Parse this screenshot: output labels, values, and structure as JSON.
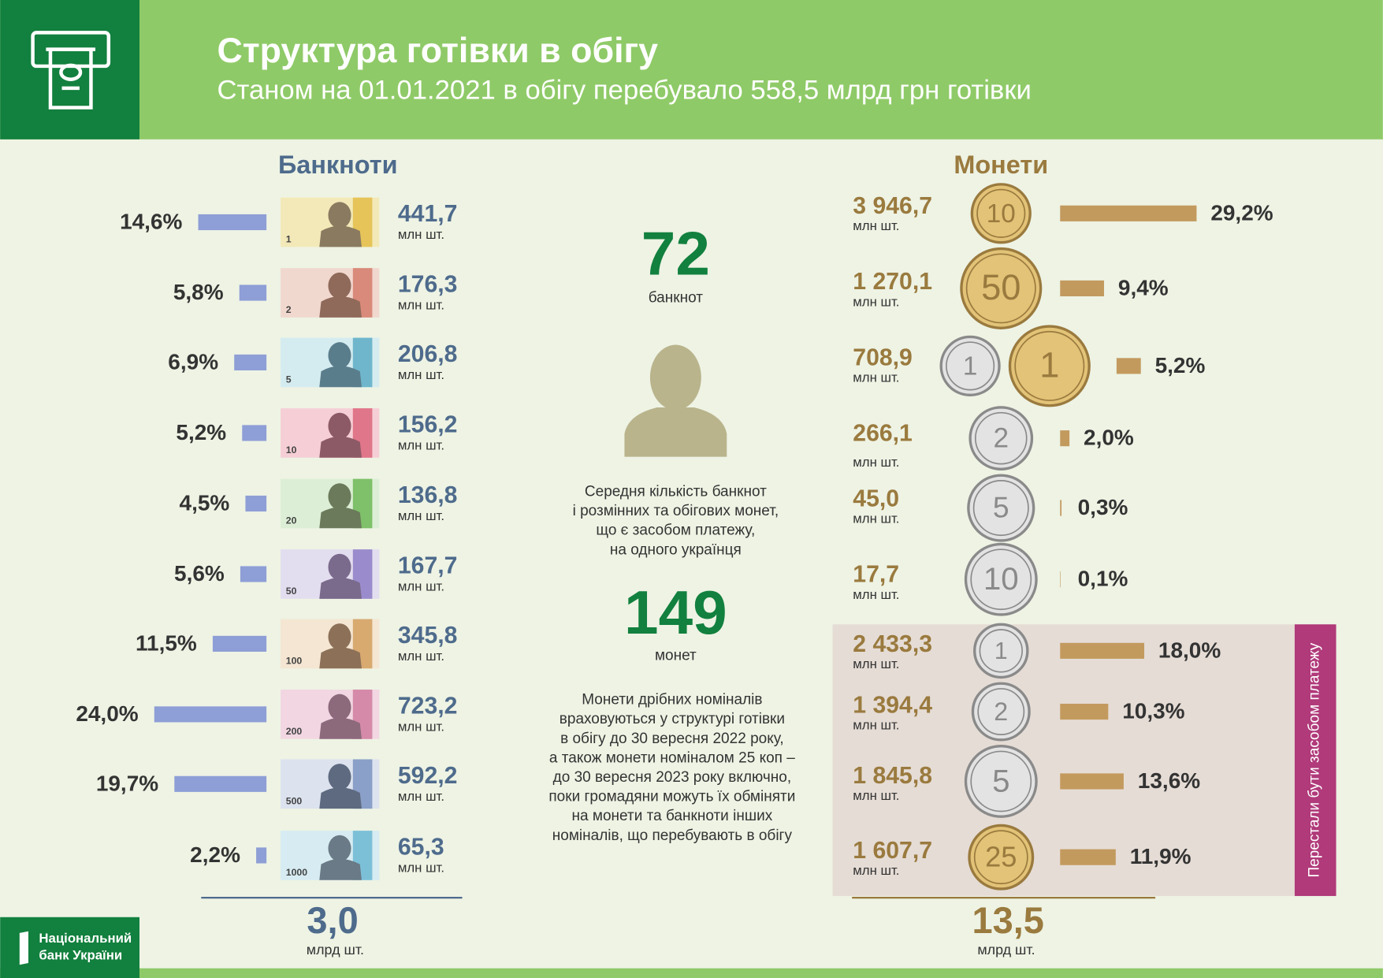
{
  "header": {
    "title": "Структура готівки в обігу",
    "subtitle": "Станом на 01.01.2021 в обігу перебувало 558,5 млрд грн готівки"
  },
  "banknotes": {
    "title": "Банкноти",
    "unit": "млн шт.",
    "total": "3,0",
    "total_unit": "млрд шт.",
    "items": [
      {
        "denomination": "1",
        "count": "441,7",
        "share": 14.6,
        "share_label": "14,6%"
      },
      {
        "denomination": "2",
        "count": "176,3",
        "share": 5.8,
        "share_label": "5,8%"
      },
      {
        "denomination": "5",
        "count": "206,8",
        "share": 6.9,
        "share_label": "6,9%"
      },
      {
        "denomination": "10",
        "count": "156,2",
        "share": 5.2,
        "share_label": "5,2%"
      },
      {
        "denomination": "20",
        "count": "136,8",
        "share": 4.5,
        "share_label": "4,5%"
      },
      {
        "denomination": "50",
        "count": "167,7",
        "share": 5.6,
        "share_label": "5,6%"
      },
      {
        "denomination": "100",
        "count": "345,8",
        "share": 11.5,
        "share_label": "11,5%"
      },
      {
        "denomination": "200",
        "count": "723,2",
        "share": 24.0,
        "share_label": "24,0%"
      },
      {
        "denomination": "500",
        "count": "592,2",
        "share": 19.7,
        "share_label": "19,7%"
      },
      {
        "denomination": "1000",
        "count": "65,3",
        "share": 2.2,
        "share_label": "2,2%"
      }
    ]
  },
  "coins": {
    "title": "Монети",
    "unit": "млн шт.",
    "total": "13,5",
    "total_unit": "млрд шт.",
    "withdrawn_label": "Перестали бути засобом платежу",
    "items": [
      {
        "denominations": [
          "10"
        ],
        "count": "3 946,7",
        "share": 29.2,
        "share_label": "29,2%",
        "withdrawn": false
      },
      {
        "denominations": [
          "50"
        ],
        "count": "1 270,1",
        "share": 9.4,
        "share_label": "9,4%",
        "withdrawn": false
      },
      {
        "denominations": [
          "1",
          "1"
        ],
        "count": "708,9",
        "share": 5.2,
        "share_label": "5,2%",
        "withdrawn": false
      },
      {
        "denominations": [
          "2"
        ],
        "count": "266,1",
        "share": 2.0,
        "share_label": "2,0%",
        "withdrawn": false
      },
      {
        "denominations": [
          "5"
        ],
        "count": "45,0",
        "share": 0.3,
        "share_label": "0,3%",
        "withdrawn": false
      },
      {
        "denominations": [
          "10"
        ],
        "count": "17,7",
        "share": 0.1,
        "share_label": "0,1%",
        "withdrawn": false
      },
      {
        "denominations": [
          "1"
        ],
        "count": "2 433,3",
        "share": 18.0,
        "share_label": "18,0%",
        "withdrawn": true
      },
      {
        "denominations": [
          "2"
        ],
        "count": "1 394,4",
        "share": 10.3,
        "share_label": "10,3%",
        "withdrawn": true
      },
      {
        "denominations": [
          "5"
        ],
        "count": "1 845,8",
        "share": 13.6,
        "share_label": "13,6%",
        "withdrawn": true
      },
      {
        "denominations": [
          "25"
        ],
        "count": "1 607,7",
        "share": 11.9,
        "share_label": "11,9%",
        "withdrawn": true
      }
    ]
  },
  "center": {
    "banknotes_per_person": "72",
    "banknotes_label": "банкнот",
    "description": [
      "Середня кількість банкнот",
      "і розмінних та обігових монет,",
      "що є засобом платежу,",
      "на одного українця"
    ],
    "coins_per_person": "149",
    "coins_label": "монет",
    "note": [
      "Монети дрібних номіналів",
      "враховуються у структурі готівки",
      "в обігу до 30 вересня 2022 року,",
      "а також монети  номіналом 25 коп –",
      "до 30 вересня 2023 року включно,",
      "поки громадяни можуть їх обміняти",
      "на монети та банкноти інших",
      "номіналів, що перебувають в обігу"
    ]
  },
  "footer": {
    "logo": [
      "Національний",
      "банк України"
    ]
  }
}
